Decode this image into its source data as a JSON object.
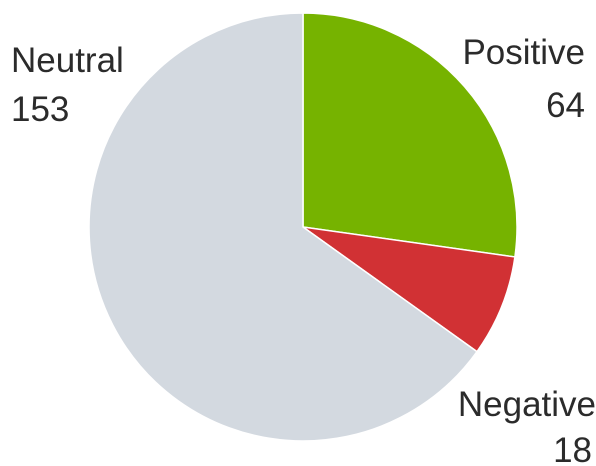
{
  "chart_data": {
    "type": "pie",
    "title": "",
    "slices": [
      {
        "label": "Positive",
        "value": 64,
        "color": "#76b300"
      },
      {
        "label": "Negative",
        "value": 18,
        "color": "#d13134"
      },
      {
        "label": "Neutral",
        "value": 153,
        "color": "#d3d9e0"
      }
    ],
    "start": "top",
    "direction": "clockwise",
    "legend": "none",
    "data_labels": "outside"
  }
}
